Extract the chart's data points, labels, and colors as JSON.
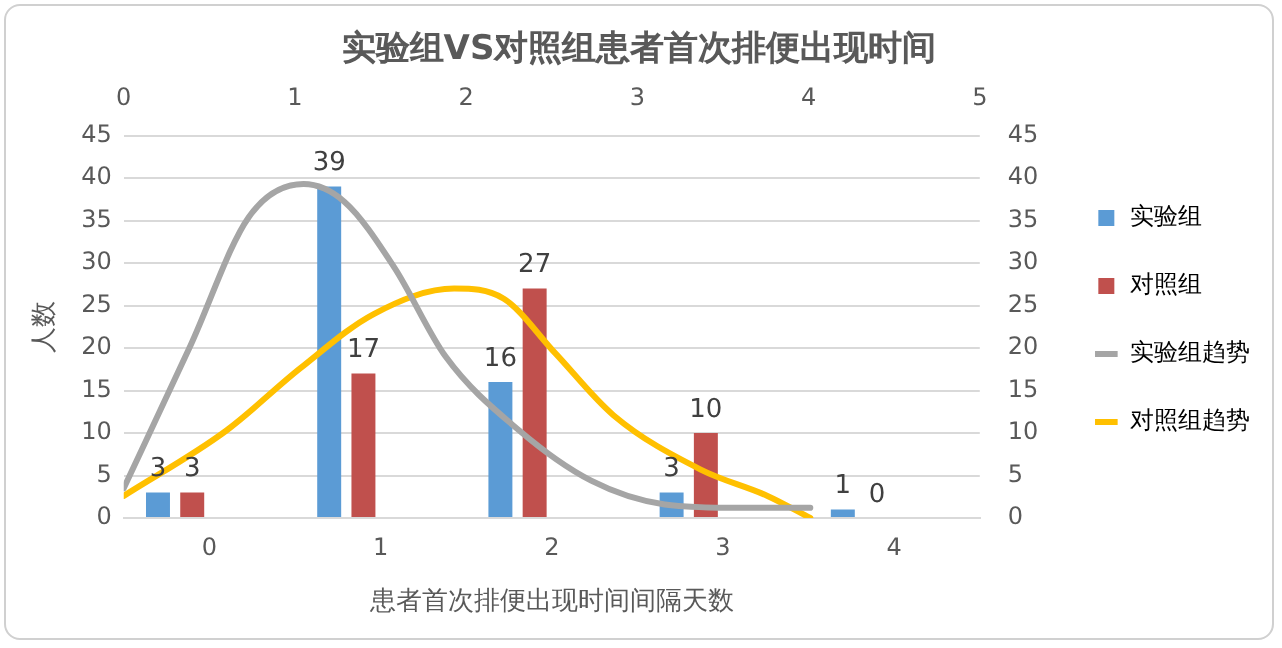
{
  "chart_data": {
    "type": "bar",
    "title": "实验组VS对照组患者首次排便出现时间",
    "xlabel": "患者首次排便出现时间间隔天数",
    "ylabel": "人数",
    "categories": [
      "0",
      "1",
      "2",
      "3",
      "4"
    ],
    "series": [
      {
        "name": "实验组",
        "color": "#5b9bd5",
        "values": [
          3,
          39,
          16,
          3,
          1
        ],
        "value_labels": [
          "3",
          "39",
          "16",
          "3",
          "1"
        ]
      },
      {
        "name": "对照组",
        "color": "#c0504d",
        "values": [
          3,
          17,
          27,
          10,
          0
        ],
        "value_labels": [
          "3",
          "17",
          "27",
          "10",
          "0"
        ]
      },
      {
        "name": "实验组趋势",
        "type": "line",
        "axis": "x2",
        "color": "#a5a5a5",
        "marker": "none",
        "x": [
          0,
          0.39,
          0.73,
          1.05,
          1.29,
          1.58,
          1.88,
          2.31,
          2.73,
          3.16,
          3.59,
          4.01
        ],
        "values": [
          3.5,
          20.3,
          35.4,
          39.3,
          37.2,
          29.5,
          19,
          10.3,
          4.4,
          1.6,
          1.2,
          1.2
        ]
      },
      {
        "name": "对照组趋势",
        "type": "line",
        "axis": "x2",
        "color": "#ffc000",
        "marker": "none",
        "x": [
          0,
          0.6,
          1.03,
          1.46,
          1.93,
          2.22,
          2.52,
          2.86,
          3.37,
          3.76,
          4.01
        ],
        "values": [
          2.6,
          10.3,
          17.6,
          24,
          27,
          25.8,
          19.4,
          12.1,
          5.7,
          2.6,
          0
        ]
      }
    ],
    "ylim": [
      0,
      45
    ],
    "yticks": [
      0,
      5,
      10,
      15,
      20,
      25,
      30,
      35,
      40,
      45
    ],
    "y2lim": [
      0,
      45
    ],
    "y2ticks": [
      0,
      5,
      10,
      15,
      20,
      25,
      30,
      35,
      40,
      45
    ],
    "x2lim": [
      0,
      5
    ],
    "x2ticks": [
      0,
      1,
      2,
      3,
      4,
      5
    ],
    "grid": "y",
    "legend": "right"
  }
}
